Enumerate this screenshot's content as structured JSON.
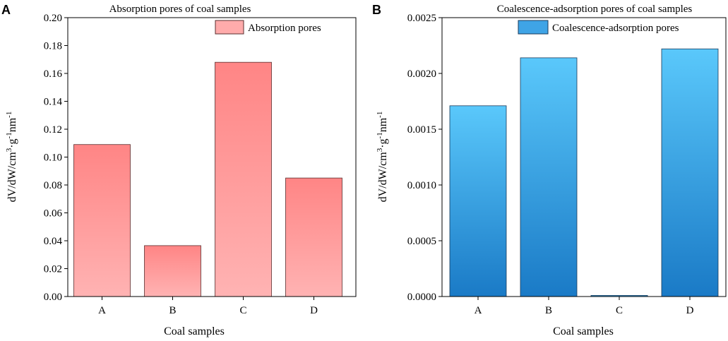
{
  "chart_data": [
    {
      "panel_label": "A",
      "type": "bar",
      "title": "Absorption pores of coal samples",
      "categories": [
        "A",
        "B",
        "C",
        "D"
      ],
      "series": [
        {
          "name": "Absorption pores",
          "values": [
            0.109,
            0.0365,
            0.168,
            0.085
          ]
        }
      ],
      "xlabel": "Coal samples",
      "ylabel": "dV/dW/cm³·g⁻¹nm⁻¹",
      "ylim": [
        0,
        0.2
      ],
      "yticks": [
        "0.00",
        "0.02",
        "0.04",
        "0.06",
        "0.08",
        "0.10",
        "0.12",
        "0.14",
        "0.16",
        "0.18",
        "0.20"
      ],
      "legend_position": "top-right",
      "colors": {
        "top": "#ff8585",
        "bottom": "#ffb3b3",
        "legend": "#ffabab",
        "stroke": "#5a2f2f"
      }
    },
    {
      "panel_label": "B",
      "type": "bar",
      "title": "Coalescence-adsorption pores of coal samples",
      "categories": [
        "A",
        "B",
        "C",
        "D"
      ],
      "series": [
        {
          "name": "Coalescence-adsorption pores",
          "values": [
            0.00171,
            0.00214,
            1e-05,
            0.00222
          ]
        }
      ],
      "xlabel": "Coal samples",
      "ylabel": "dV/dW/cm³·g⁻¹nm⁻¹",
      "ylim": [
        0,
        0.0025
      ],
      "yticks": [
        "0.0000",
        "0.0005",
        "0.0010",
        "0.0015",
        "0.0020",
        "0.0025"
      ],
      "legend_position": "top-right",
      "colors": {
        "top": "#5ac8fb",
        "bottom": "#1a7ac6",
        "legend": "#3fa4e6",
        "stroke": "#1a3a5a"
      }
    }
  ]
}
